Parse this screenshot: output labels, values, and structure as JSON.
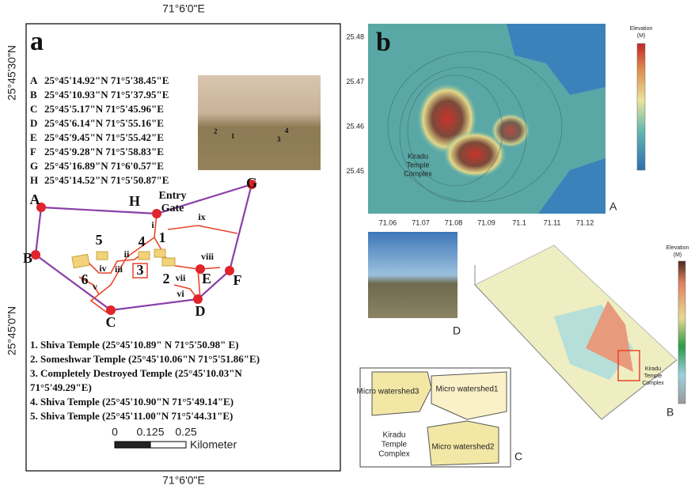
{
  "panel_a": {
    "label": "a",
    "top_longitude": "71°6'0\"E",
    "bottom_longitude": "71°6'0\"E",
    "upper_latitude": "25°45'30\"N",
    "lower_latitude": "25°45'0\"N",
    "coordinates": [
      {
        "id": "A",
        "text": "25°45'14.92\"N 71°5'38.45\"E"
      },
      {
        "id": "B",
        "text": "25°45'10.93\"N 71°5'37.95\"E"
      },
      {
        "id": "C",
        "text": "25°45'5.17\"N 71°5'45.96\"E"
      },
      {
        "id": "D",
        "text": "25°45'6.14\"N 71°5'55.16\"E"
      },
      {
        "id": "E",
        "text": "25°45'9.45\"N 71°5'55.42\"E"
      },
      {
        "id": "F",
        "text": "25°45'9.28\"N 71°5'58.83\"E"
      },
      {
        "id": "G",
        "text": "25°45'16.89\"N 71°6'0.57\"E"
      },
      {
        "id": "H",
        "text": "25°45'14.52\"N 71°5'50.87\"E"
      }
    ],
    "photo_numbers": [
      "2",
      "1",
      "4",
      "3"
    ],
    "gate_label": [
      "Entry",
      "Gate"
    ],
    "map_points": [
      "A",
      "B",
      "C",
      "D",
      "E",
      "F",
      "G",
      "H"
    ],
    "temple_numbers": [
      "5",
      "4",
      "1",
      "3",
      "2",
      "6"
    ],
    "paths": [
      "i",
      "ii",
      "iii",
      "iv",
      "v",
      "vi",
      "vii",
      "viii",
      "ix"
    ],
    "temples": [
      {
        "lines": [
          "1. Shiva Temple (25°45'10.89\" N  71°5'50.98\" E)"
        ]
      },
      {
        "lines": [
          "2. Someshwar Temple (25°45'10.06\"N 71°5'51.86\"E)"
        ]
      },
      {
        "lines": [
          "3. Completely Destroyed Temple (25°45'10.03\"N",
          "71°5'49.29\"E)"
        ]
      },
      {
        "lines": [
          "4. Shiva Temple (25°45'10.90\"N 71°5'49.14\"E)"
        ]
      },
      {
        "lines": [
          "5. Shiva Temple (25°45'11.00\"N 71°5'44.31\"E)"
        ]
      }
    ],
    "scale_ticks": [
      "0",
      "0.125",
      "0.25"
    ],
    "scale_unit": "Kilometer"
  },
  "panel_b": {
    "label": "b",
    "xticks": [
      "71.06",
      "71.07",
      "71.08",
      "71.09",
      "71.1",
      "71.11",
      "71.12"
    ],
    "yticks": [
      "25.48",
      "25.47",
      "25.46",
      "25.45"
    ],
    "colorbar_title": [
      "Elevation",
      "(M)"
    ],
    "annotation": [
      "Kiradu",
      "Temple",
      "Complex"
    ],
    "corner": "A"
  },
  "panel_d": {
    "corner": "D"
  },
  "panel_3d": {
    "colorbar_title": [
      "Elevation",
      "(M)"
    ],
    "annotation": [
      "Kiradu",
      "Temple",
      "Complex"
    ],
    "corner": "B"
  },
  "panel_c": {
    "watersheds": [
      "Micro watershed3",
      "Micro watershed1",
      "Micro watershed2"
    ],
    "annotation": [
      "Kiradu",
      "Temple",
      "Complex"
    ],
    "corner": "C"
  }
}
